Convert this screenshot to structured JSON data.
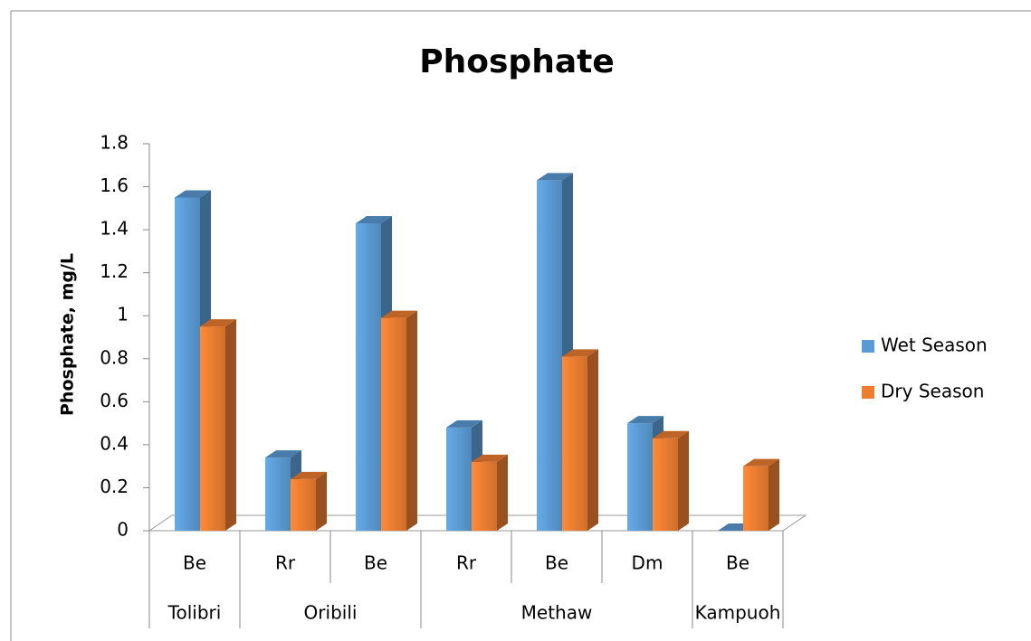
{
  "chart_data": {
    "type": "bar3d",
    "title": "Phosphate",
    "y_label": "Phosphate, mg/L",
    "groups": [
      {
        "label": "Tolibri",
        "categories": [
          "Be"
        ]
      },
      {
        "label": "Oribili",
        "categories": [
          "Rr",
          "Be"
        ]
      },
      {
        "label": "Methaw",
        "categories": [
          "Rr",
          "Be",
          "Dm"
        ]
      },
      {
        "label": "Kampuoh",
        "categories": [
          "Be"
        ]
      }
    ],
    "series": [
      {
        "name": "Wet Season",
        "color": "#5b9bd5",
        "values": [
          1.55,
          0.34,
          1.43,
          0.48,
          1.63,
          0.5,
          0.0
        ]
      },
      {
        "name": "Dry Season",
        "color": "#ed7d31",
        "values": [
          0.95,
          0.24,
          0.99,
          0.32,
          0.81,
          0.43,
          0.3
        ]
      }
    ],
    "ylim": [
      0,
      1.8
    ],
    "yticks": [
      0,
      0.2,
      0.4,
      0.6,
      0.8,
      1,
      1.2,
      1.4,
      1.6,
      1.8
    ],
    "legend": "right"
  }
}
